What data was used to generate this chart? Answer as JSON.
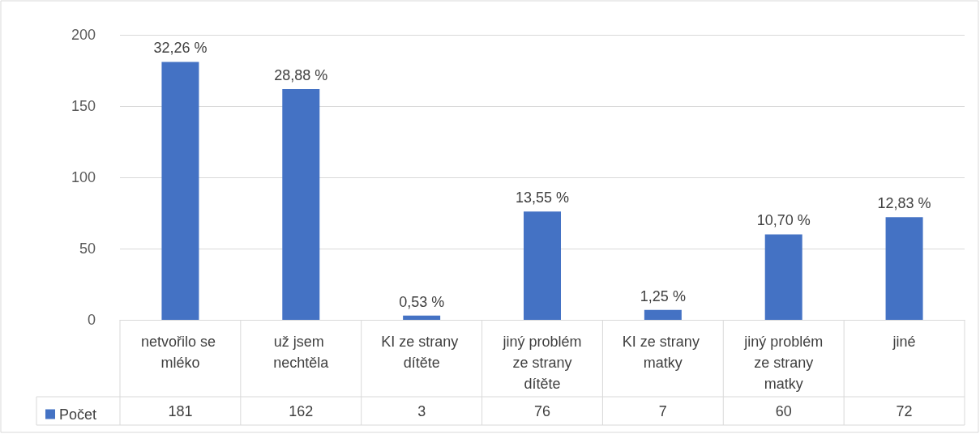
{
  "chart_data": {
    "type": "bar",
    "categories": [
      "netvořilo se mléko",
      "už jsem nechtěla",
      "KI ze strany dítěte",
      "jiný problém ze strany dítěte",
      "KI ze strany matky",
      "jiný problém ze strany matky",
      "jiné"
    ],
    "series": [
      {
        "name": "Počet",
        "color": "#4472c4",
        "values": [
          181,
          162,
          3,
          76,
          7,
          60,
          72
        ],
        "value_labels": [
          "181",
          "162",
          "3",
          "76",
          "7",
          "60",
          "72"
        ]
      }
    ],
    "annotations": [
      {
        "text": "32,26 %",
        "x": "netvořilo se mléko",
        "y": 181
      },
      {
        "text": "28,88 %",
        "x": "už jsem nechtěla",
        "y": 162
      },
      {
        "text": "0,53 %",
        "x": "KI ze strany dítěte",
        "y": 3
      },
      {
        "text": "13,55 %",
        "x": "jiný problém ze strany dítěte",
        "y": 76
      },
      {
        "text": "1,25 %",
        "x": "KI ze strany matky",
        "y": 7
      },
      {
        "text": "10,70 %",
        "x": "jiný problém ze strany matky",
        "y": 60
      },
      {
        "text": "12,83 %",
        "x": "jiné",
        "y": 72
      }
    ],
    "ylim": [
      0,
      200
    ],
    "yticks": [
      0,
      50,
      100,
      150,
      200
    ],
    "grid": "y",
    "legend": "bottom left"
  }
}
